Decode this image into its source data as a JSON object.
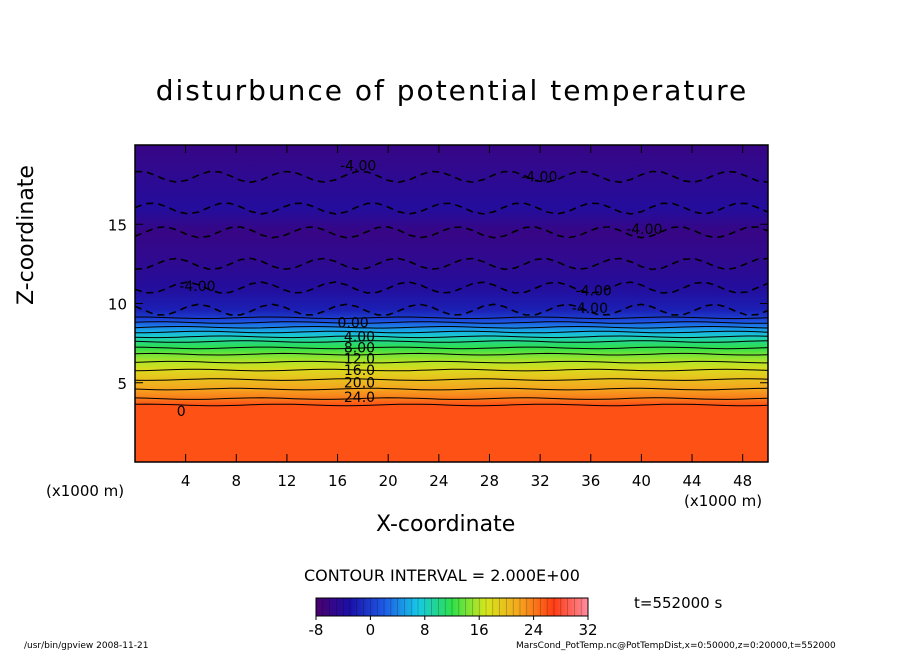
{
  "chart_data": {
    "type": "heatmap",
    "title": "disturbunce of potential temperature",
    "xlabel": "X-coordinate",
    "ylabel": "Z-coordinate",
    "x_unit_label": "(x1000 m)",
    "xlim": [
      0,
      50
    ],
    "ylim": [
      0,
      20
    ],
    "x_ticks": [
      4,
      8,
      12,
      16,
      20,
      24,
      28,
      32,
      36,
      40,
      44,
      48
    ],
    "y_ticks": [
      5,
      10,
      15
    ],
    "z_profile": [
      {
        "z": 0,
        "value": 26
      },
      {
        "z": 3.6,
        "value": 26
      },
      {
        "z": 4.0,
        "value": 24
      },
      {
        "z": 4.6,
        "value": 22
      },
      {
        "z": 5.2,
        "value": 20
      },
      {
        "z": 5.8,
        "value": 18
      },
      {
        "z": 6.3,
        "value": 16
      },
      {
        "z": 6.8,
        "value": 14
      },
      {
        "z": 7.2,
        "value": 12
      },
      {
        "z": 7.6,
        "value": 10
      },
      {
        "z": 7.9,
        "value": 8
      },
      {
        "z": 8.2,
        "value": 6
      },
      {
        "z": 8.5,
        "value": 4
      },
      {
        "z": 8.8,
        "value": 2
      },
      {
        "z": 9.1,
        "value": 0
      },
      {
        "z": 9.6,
        "value": -2
      },
      {
        "z": 11,
        "value": -4
      },
      {
        "z": 12.5,
        "value": -5
      },
      {
        "z": 14.5,
        "value": -6
      },
      {
        "z": 16,
        "value": -4
      },
      {
        "z": 18,
        "value": -5
      },
      {
        "z": 20,
        "value": -6
      }
    ],
    "contour_labels": [
      {
        "text": "0.00",
        "x": 16,
        "z": 8.5
      },
      {
        "text": "4.00",
        "x": 16.5,
        "z": 7.6
      },
      {
        "text": "8.00",
        "x": 16.5,
        "z": 6.9
      },
      {
        "text": "12.0",
        "x": 16.5,
        "z": 6.2
      },
      {
        "text": "16.0",
        "x": 16.5,
        "z": 5.5
      },
      {
        "text": "20.0",
        "x": 16.5,
        "z": 4.7
      },
      {
        "text": "24.0",
        "x": 16.5,
        "z": 3.8
      },
      {
        "text": "0",
        "x": 3.3,
        "z": 2.9
      },
      {
        "text": "-4.00",
        "x": 3.5,
        "z": 10.8
      },
      {
        "text": "-4.00",
        "x": 16.2,
        "z": 18.4
      },
      {
        "text": "-4.00",
        "x": 30.5,
        "z": 17.7
      },
      {
        "text": "-4.00",
        "x": 38.8,
        "z": 14.4
      },
      {
        "text": "-4.00",
        "x": 34.8,
        "z": 10.5
      },
      {
        "text": "-4.00",
        "x": 34.5,
        "z": 9.4
      }
    ],
    "colorbar": {
      "min": -8,
      "max": 32,
      "tick_labels": [
        "-8",
        "0",
        "8",
        "16",
        "24",
        "32"
      ],
      "colors": [
        "#4b006e",
        "#1a10a8",
        "#1e5ae6",
        "#17c8e6",
        "#2ee04a",
        "#d6e61e",
        "#f5a41e",
        "#ff3c14",
        "#ff8ca0"
      ]
    },
    "contour_interval": "CONTOUR INTERVAL = 2.000E+00",
    "time": "t=552000 s"
  },
  "footer": {
    "left": "/usr/bin/gpview  2008-11-21",
    "right": "MarsCond_PotTemp.nc@PotTempDist,x=0:50000,z=0:20000,t=552000"
  }
}
